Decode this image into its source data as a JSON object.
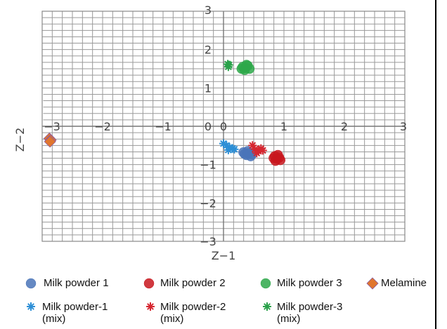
{
  "chart_data": {
    "type": "scatter",
    "title": "",
    "xlabel": "Z−1",
    "ylabel": "Z−2",
    "xlim": [
      -3,
      3
    ],
    "ylim": [
      -3,
      3
    ],
    "xticks": [
      "−3",
      "−2",
      "−1",
      "0",
      "1",
      "2",
      "3"
    ],
    "yticks": [
      "3",
      "2",
      "1",
      "0",
      "−1",
      "−2",
      "−3"
    ],
    "grid": true,
    "legend_placement": "bottom",
    "series": [
      {
        "name": "Milk powder 1",
        "marker": "circle",
        "color": "#4a74b8",
        "points": [
          [
            0.35,
            -0.72
          ],
          [
            0.38,
            -0.75
          ],
          [
            0.42,
            -0.7
          ],
          [
            0.45,
            -0.78
          ],
          [
            0.4,
            -0.65
          ],
          [
            0.33,
            -0.68
          ],
          [
            0.47,
            -0.73
          ]
        ]
      },
      {
        "name": "Milk powder 2",
        "marker": "circle",
        "color": "#c8161d",
        "points": [
          [
            0.85,
            -0.78
          ],
          [
            0.88,
            -0.85
          ],
          [
            0.92,
            -0.82
          ],
          [
            0.86,
            -0.9
          ],
          [
            0.9,
            -0.75
          ],
          [
            0.83,
            -0.83
          ],
          [
            0.94,
            -0.88
          ]
        ]
      },
      {
        "name": "Milk powder 3",
        "marker": "circle",
        "color": "#2ea84a",
        "points": [
          [
            0.32,
            1.55
          ],
          [
            0.36,
            1.52
          ],
          [
            0.4,
            1.58
          ],
          [
            0.35,
            1.47
          ],
          [
            0.43,
            1.5
          ],
          [
            0.38,
            1.6
          ],
          [
            0.3,
            1.5
          ]
        ]
      },
      {
        "name": "Melamine",
        "marker": "diamond",
        "color": "#e0762e",
        "points": [
          [
            -2.88,
            -0.32
          ],
          [
            -2.86,
            -0.36
          ],
          [
            -2.87,
            -0.4
          ]
        ]
      },
      {
        "name": "Milk powder-1\n(mix)",
        "marker": "asterisk",
        "color": "#2d8fd6",
        "points": [
          [
            0.0,
            -0.45
          ],
          [
            0.05,
            -0.5
          ],
          [
            0.1,
            -0.55
          ],
          [
            0.15,
            -0.58
          ],
          [
            0.08,
            -0.62
          ],
          [
            0.18,
            -0.6
          ]
        ]
      },
      {
        "name": "Milk powder-2\n(mix)",
        "marker": "asterisk",
        "color": "#d62630",
        "points": [
          [
            0.48,
            -0.5
          ],
          [
            0.52,
            -0.6
          ],
          [
            0.58,
            -0.65
          ],
          [
            0.62,
            -0.58
          ],
          [
            0.55,
            -0.7
          ],
          [
            0.65,
            -0.63
          ]
        ]
      },
      {
        "name": "Milk powder-3\n(mix)",
        "marker": "asterisk",
        "color": "#2aa14a",
        "points": [
          [
            0.07,
            1.62
          ],
          [
            0.08,
            1.55
          ],
          [
            0.09,
            1.6
          ]
        ]
      }
    ],
    "legend": {
      "items": [
        {
          "label": "Milk powder 1",
          "marker": "circle",
          "color": "#4a74b8"
        },
        {
          "label": "Milk powder 2",
          "marker": "circle",
          "color": "#c8161d"
        },
        {
          "label": "Milk powder 3",
          "marker": "circle",
          "color": "#2ea84a"
        },
        {
          "label": "Melamine",
          "marker": "diamond",
          "color": "#e0762e"
        },
        {
          "label_line1": "Milk powder-1",
          "label_line2": "(mix)",
          "marker": "asterisk",
          "color": "#2d8fd6"
        },
        {
          "label_line1": "Milk powder-2",
          "label_line2": "(mix)",
          "marker": "asterisk",
          "color": "#d62630"
        },
        {
          "label_line1": "Milk powder-3",
          "label_line2": "(mix)",
          "marker": "asterisk",
          "color": "#2aa14a"
        }
      ]
    }
  }
}
